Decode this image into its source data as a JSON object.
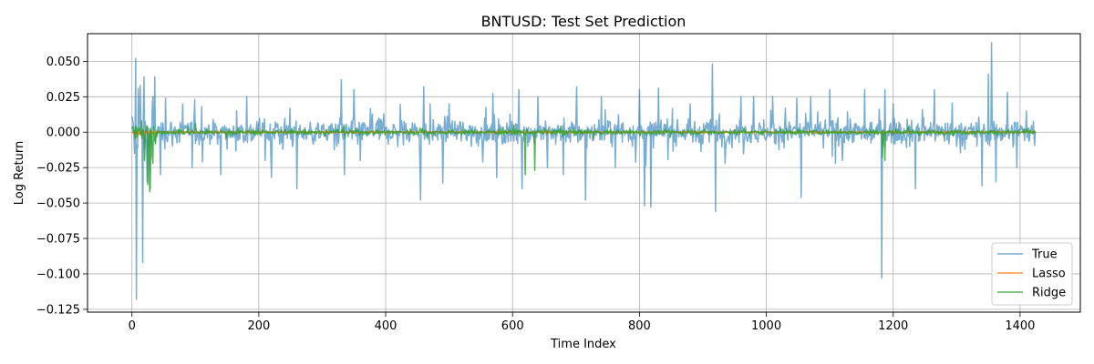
{
  "chart_data": {
    "type": "line",
    "title": "BNTUSD: Test Set Prediction",
    "xlabel": "Time Index",
    "ylabel": "Log Return",
    "xlim": [
      -70,
      1495
    ],
    "ylim": [
      -0.127,
      0.0695
    ],
    "xticks": [
      0,
      200,
      400,
      600,
      800,
      1000,
      1200,
      1400
    ],
    "yticks": [
      -0.125,
      -0.1,
      -0.075,
      -0.05,
      -0.025,
      0.0,
      0.025,
      0.05
    ],
    "xtick_labels": [
      "0",
      "200",
      "400",
      "600",
      "800",
      "1000",
      "1200",
      "1400"
    ],
    "ytick_labels": [
      "−0.125",
      "−0.100",
      "−0.075",
      "−0.050",
      "−0.025",
      "0.000",
      "0.025",
      "0.050"
    ],
    "grid": true,
    "legend_position": "lower-right",
    "n_points": 1425,
    "series": [
      {
        "name": "True",
        "color": "#1f77b4",
        "opacity": 0.6,
        "highlights": [
          [
            1,
            0.009
          ],
          [
            4,
            -0.015
          ],
          [
            6,
            0.052
          ],
          [
            7,
            -0.118
          ],
          [
            10,
            0.031
          ],
          [
            13,
            0.033
          ],
          [
            17,
            -0.092
          ],
          [
            19,
            0.039
          ],
          [
            24,
            -0.035
          ],
          [
            29,
            -0.04
          ],
          [
            33,
            0.025
          ],
          [
            36,
            0.039
          ],
          [
            45,
            -0.03
          ],
          [
            53,
            0.024
          ],
          [
            80,
            0.02
          ],
          [
            95,
            -0.025
          ],
          [
            110,
            0.018
          ],
          [
            140,
            -0.03
          ],
          [
            165,
            0.015
          ],
          [
            181,
            0.025
          ],
          [
            210,
            -0.02
          ],
          [
            220,
            -0.032
          ],
          [
            260,
            -0.04
          ],
          [
            330,
            0.037
          ],
          [
            335,
            -0.03
          ],
          [
            350,
            0.03
          ],
          [
            360,
            -0.02
          ],
          [
            455,
            -0.048
          ],
          [
            460,
            0.032
          ],
          [
            470,
            0.02
          ],
          [
            490,
            -0.036
          ],
          [
            500,
            0.02
          ],
          [
            575,
            -0.032
          ],
          [
            610,
            0.03
          ],
          [
            615,
            -0.04
          ],
          [
            640,
            0.025
          ],
          [
            655,
            -0.025
          ],
          [
            680,
            -0.03
          ],
          [
            701,
            0.032
          ],
          [
            715,
            -0.048
          ],
          [
            740,
            0.025
          ],
          [
            800,
            0.03
          ],
          [
            808,
            -0.052
          ],
          [
            818,
            -0.053
          ],
          [
            830,
            0.031
          ],
          [
            880,
            0.02
          ],
          [
            915,
            0.048
          ],
          [
            920,
            -0.056
          ],
          [
            935,
            -0.022
          ],
          [
            960,
            0.025
          ],
          [
            980,
            0.025
          ],
          [
            1010,
            0.025
          ],
          [
            1055,
            -0.046
          ],
          [
            1070,
            0.025
          ],
          [
            1100,
            0.03
          ],
          [
            1120,
            -0.02
          ],
          [
            1155,
            0.03
          ],
          [
            1182,
            -0.103
          ],
          [
            1187,
            0.03
          ],
          [
            1200,
            0.02
          ],
          [
            1235,
            -0.04
          ],
          [
            1265,
            0.03
          ],
          [
            1340,
            -0.038
          ],
          [
            1350,
            0.041
          ],
          [
            1355,
            0.063
          ],
          [
            1362,
            -0.035
          ],
          [
            1380,
            0.028
          ],
          [
            1395,
            -0.025
          ],
          [
            1410,
            0.015
          ],
          [
            1425,
            0.004
          ]
        ]
      },
      {
        "name": "Lasso",
        "color": "#ff7f0e",
        "opacity": 0.8
      },
      {
        "name": "Ridge",
        "color": "#2ca02c",
        "opacity": 0.8,
        "highlights": [
          [
            20,
            -0.02
          ],
          [
            25,
            -0.037
          ],
          [
            28,
            -0.042
          ],
          [
            33,
            -0.022
          ],
          [
            620,
            -0.03
          ],
          [
            635,
            -0.027
          ],
          [
            1183,
            -0.018
          ],
          [
            1187,
            -0.02
          ]
        ]
      }
    ]
  }
}
